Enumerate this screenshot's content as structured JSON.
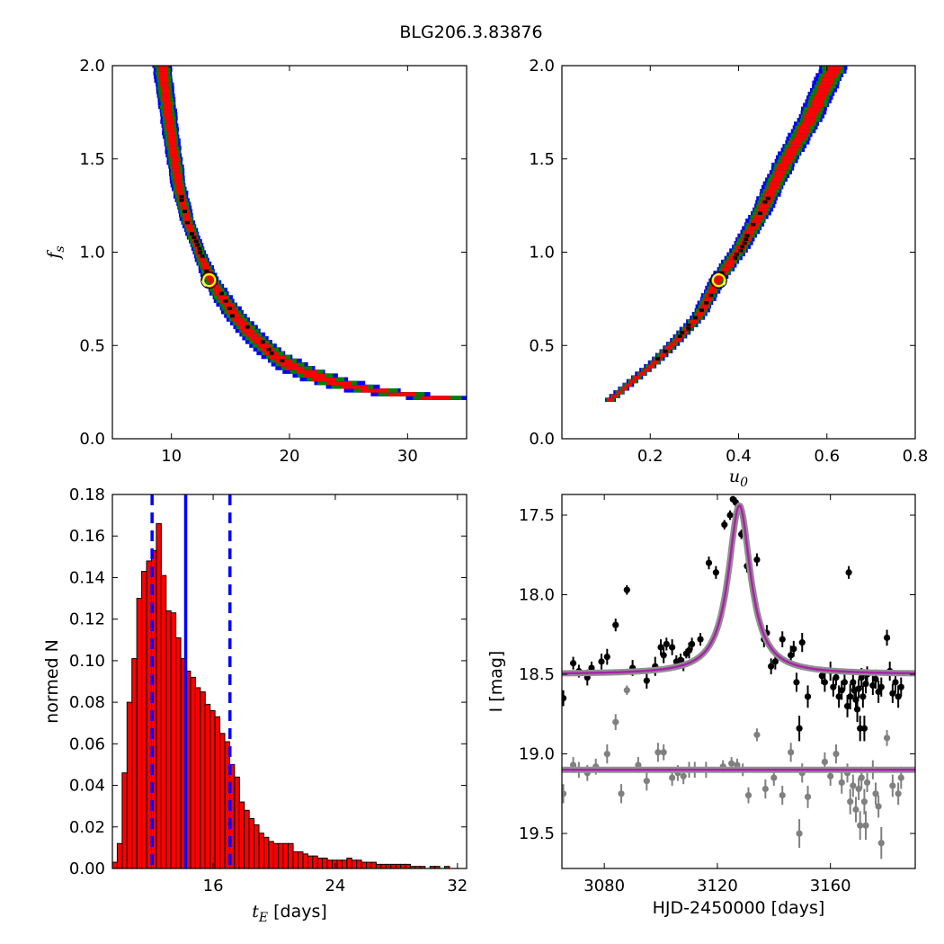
{
  "figure": {
    "title": "BLG206.3.83876"
  },
  "chart_data": [
    {
      "id": "fs_vs_tE",
      "type": "heatmap",
      "xlim": [
        5,
        35
      ],
      "ylim": [
        0,
        2.0
      ],
      "xticks": [
        "10",
        "20",
        "30"
      ],
      "yticks": [
        "0.0",
        "0.5",
        "1.0",
        "1.5",
        "2.0"
      ],
      "xlabel": "",
      "ylabel": "f_s",
      "colors": {
        "outer": "#0000ff",
        "mid": "#008000",
        "inner": "#ff0000",
        "core": "#000000",
        "best": "#ffff00"
      },
      "band": [
        [
          9.2,
          2.0
        ],
        [
          10.0,
          1.6
        ],
        [
          10.6,
          1.35
        ],
        [
          11.4,
          1.15
        ],
        [
          12.3,
          1.0
        ],
        [
          13.3,
          0.85
        ],
        [
          14.3,
          0.75
        ],
        [
          15.4,
          0.65
        ],
        [
          16.8,
          0.55
        ],
        [
          18.5,
          0.45
        ],
        [
          20.5,
          0.37
        ],
        [
          23.0,
          0.31
        ],
        [
          26.0,
          0.26
        ],
        [
          29.5,
          0.23
        ],
        [
          32.5,
          0.21
        ]
      ],
      "best_fit": {
        "x": 13.2,
        "y": 0.85
      }
    },
    {
      "id": "fs_vs_u0",
      "type": "heatmap",
      "xlim": [
        0,
        0.8
      ],
      "ylim": [
        0,
        2.0
      ],
      "xticks": [
        "0.2",
        "0.4",
        "0.6",
        "0.8"
      ],
      "yticks": [
        "0.0",
        "0.5",
        "1.0",
        "1.5",
        "2.0"
      ],
      "xlabel": "u_0",
      "ylabel": "",
      "colors": {
        "outer": "#0000ff",
        "mid": "#008000",
        "inner": "#ff0000",
        "core": "#000000",
        "best": "#ffff00"
      },
      "band": [
        [
          0.11,
          0.2
        ],
        [
          0.16,
          0.3
        ],
        [
          0.21,
          0.4
        ],
        [
          0.26,
          0.52
        ],
        [
          0.31,
          0.65
        ],
        [
          0.355,
          0.85
        ],
        [
          0.4,
          1.0
        ],
        [
          0.45,
          1.2
        ],
        [
          0.5,
          1.45
        ],
        [
          0.56,
          1.7
        ],
        [
          0.62,
          2.0
        ]
      ],
      "best_fit": {
        "x": 0.355,
        "y": 0.85
      }
    },
    {
      "id": "tE_hist",
      "type": "bar",
      "xlim": [
        9.4,
        32.6
      ],
      "ylim": [
        0,
        0.18
      ],
      "xticks": [
        "16",
        "24",
        "32"
      ],
      "yticks": [
        "0.00",
        "0.02",
        "0.04",
        "0.06",
        "0.08",
        "0.10",
        "0.12",
        "0.14",
        "0.16",
        "0.18"
      ],
      "xlabel": "t_E [days]",
      "ylabel": "normed N",
      "bin_start": 9.4,
      "bin_width": 0.32,
      "values": [
        0.003,
        0.012,
        0.046,
        0.08,
        0.101,
        0.13,
        0.143,
        0.148,
        0.153,
        0.166,
        0.141,
        0.124,
        0.123,
        0.111,
        0.101,
        0.095,
        0.092,
        0.087,
        0.085,
        0.079,
        0.076,
        0.073,
        0.065,
        0.061,
        0.05,
        0.044,
        0.032,
        0.028,
        0.024,
        0.021,
        0.017,
        0.015,
        0.013,
        0.012,
        0.012,
        0.012,
        0.012,
        0.008,
        0.008,
        0.007,
        0.006,
        0.006,
        0.005,
        0.005,
        0.004,
        0.004,
        0.004,
        0.004,
        0.005,
        0.004,
        0.004,
        0.003,
        0.003,
        0.003,
        0.002,
        0.002,
        0.002,
        0.002,
        0.002,
        0.002,
        0.002,
        0.001,
        0.001,
        0.001,
        0.0,
        0.001,
        0.001,
        0.0,
        0.001,
        0.0,
        0.0,
        0.0
      ],
      "bar_color": "#ff0000",
      "median": 14.2,
      "lower": 12.0,
      "upper": 17.1,
      "line_color": "#0000ff"
    },
    {
      "id": "lightcurve",
      "type": "scatter",
      "xlim": [
        3065,
        3190
      ],
      "ylim": [
        19.72,
        17.37
      ],
      "xticks": [
        "3080",
        "3120",
        "3160"
      ],
      "yticks": [
        "17.5",
        "18.0",
        "18.5",
        "19.0",
        "19.5"
      ],
      "xlabel": "HJD-2450000 [days]",
      "ylabel": "I [mag]",
      "model": {
        "t0": 3127.8,
        "baseline": 18.5,
        "peak": 17.44,
        "width": 4.8,
        "color": "#aa22aa"
      },
      "residual_baseline": 19.1,
      "data": [
        [
          3065.5,
          18.65,
          0.05
        ],
        [
          3069,
          18.43,
          0.04
        ],
        [
          3071,
          18.48,
          0.04
        ],
        [
          3074,
          18.52,
          0.05
        ],
        [
          3075.5,
          18.46,
          0.04
        ],
        [
          3079,
          18.42,
          0.05
        ],
        [
          3081,
          18.39,
          0.05
        ],
        [
          3084,
          18.19,
          0.04
        ],
        [
          3088,
          17.97,
          0.03
        ],
        [
          3090,
          18.46,
          0.05
        ],
        [
          3095,
          18.54,
          0.05
        ],
        [
          3098,
          18.45,
          0.06
        ],
        [
          3100,
          18.33,
          0.05
        ],
        [
          3101,
          18.38,
          0.05
        ],
        [
          3102,
          18.31,
          0.04
        ],
        [
          3104,
          18.33,
          0.05
        ],
        [
          3105.5,
          18.42,
          0.04
        ],
        [
          3107,
          18.41,
          0.04
        ],
        [
          3108,
          18.44,
          0.04
        ],
        [
          3109,
          18.37,
          0.03
        ],
        [
          3110,
          18.35,
          0.05
        ],
        [
          3111,
          18.31,
          0.04
        ],
        [
          3114,
          18.28,
          0.04
        ],
        [
          3117,
          17.8,
          0.04
        ],
        [
          3119.5,
          17.86,
          0.04
        ],
        [
          3122.5,
          17.56,
          0.03
        ],
        [
          3124.5,
          17.5,
          0.03
        ],
        [
          3125.5,
          17.4,
          0.02
        ],
        [
          3126.5,
          17.42,
          0.03
        ],
        [
          3128.5,
          17.62,
          0.03
        ],
        [
          3130.5,
          17.82,
          0.04
        ],
        [
          3134,
          17.78,
          0.04
        ],
        [
          3136.5,
          18.28,
          0.05
        ],
        [
          3137.5,
          18.24,
          0.05
        ],
        [
          3139,
          18.45,
          0.05
        ],
        [
          3140.5,
          18.42,
          0.05
        ],
        [
          3143,
          18.28,
          0.05
        ],
        [
          3146,
          18.38,
          0.06
        ],
        [
          3147,
          18.34,
          0.05
        ],
        [
          3148,
          18.55,
          0.06
        ],
        [
          3149,
          18.84,
          0.08
        ],
        [
          3150,
          18.3,
          0.06
        ],
        [
          3152,
          18.64,
          0.07
        ],
        [
          3157,
          18.51,
          0.05
        ],
        [
          3158,
          18.55,
          0.06
        ],
        [
          3160,
          18.48,
          0.06
        ],
        [
          3161,
          18.58,
          0.06
        ],
        [
          3162,
          18.52,
          0.05
        ],
        [
          3163,
          18.64,
          0.07
        ],
        [
          3164,
          18.6,
          0.06
        ],
        [
          3165,
          18.55,
          0.05
        ],
        [
          3166,
          18.7,
          0.07
        ],
        [
          3166.5,
          17.86,
          0.04
        ],
        [
          3167,
          18.64,
          0.08
        ],
        [
          3168,
          18.55,
          0.07
        ],
        [
          3168.5,
          18.6,
          0.06
        ],
        [
          3169,
          18.66,
          0.06
        ],
        [
          3169.5,
          18.72,
          0.08
        ],
        [
          3170,
          18.59,
          0.06
        ],
        [
          3170.5,
          18.84,
          0.08
        ],
        [
          3171,
          18.52,
          0.06
        ],
        [
          3171.5,
          18.64,
          0.07
        ],
        [
          3172,
          18.84,
          0.08
        ],
        [
          3172.5,
          18.56,
          0.06
        ],
        [
          3173,
          18.5,
          0.05
        ],
        [
          3175,
          18.57,
          0.06
        ],
        [
          3176,
          18.53,
          0.06
        ],
        [
          3177,
          18.61,
          0.07
        ],
        [
          3178,
          18.58,
          0.06
        ],
        [
          3180,
          18.27,
          0.05
        ],
        [
          3181,
          18.48,
          0.06
        ],
        [
          3182,
          18.62,
          0.06
        ],
        [
          3183,
          18.55,
          0.07
        ],
        [
          3184,
          18.64,
          0.07
        ],
        [
          3185,
          18.58,
          0.06
        ]
      ],
      "residuals": [
        [
          3065.5,
          19.25,
          0.06
        ],
        [
          3069,
          19.07,
          0.05
        ],
        [
          3071,
          19.1,
          0.05
        ],
        [
          3074,
          19.12,
          0.05
        ],
        [
          3077,
          19.08,
          0.05
        ],
        [
          3081,
          19.0,
          0.06
        ],
        [
          3084,
          18.8,
          0.05
        ],
        [
          3086,
          19.25,
          0.06
        ],
        [
          3088,
          18.6,
          0.03
        ],
        [
          3092,
          19.07,
          0.05
        ],
        [
          3095,
          19.17,
          0.06
        ],
        [
          3099,
          18.99,
          0.06
        ],
        [
          3101,
          18.99,
          0.05
        ],
        [
          3104,
          19.15,
          0.05
        ],
        [
          3106,
          19.12,
          0.05
        ],
        [
          3108,
          19.14,
          0.05
        ],
        [
          3110,
          19.1,
          0.05
        ],
        [
          3112,
          19.1,
          0.05
        ],
        [
          3116,
          19.1,
          0.05
        ],
        [
          3122,
          19.08,
          0.04
        ],
        [
          3125,
          19.06,
          0.04
        ],
        [
          3127,
          19.07,
          0.04
        ],
        [
          3129,
          19.1,
          0.04
        ],
        [
          3131,
          19.26,
          0.05
        ],
        [
          3134,
          18.88,
          0.04
        ],
        [
          3137,
          19.22,
          0.06
        ],
        [
          3140,
          19.15,
          0.05
        ],
        [
          3143,
          19.26,
          0.06
        ],
        [
          3146,
          18.99,
          0.06
        ],
        [
          3149,
          19.5,
          0.09
        ],
        [
          3150,
          19.12,
          0.06
        ],
        [
          3152,
          19.27,
          0.07
        ],
        [
          3158,
          19.05,
          0.06
        ],
        [
          3160,
          19.14,
          0.06
        ],
        [
          3162,
          19.0,
          0.06
        ],
        [
          3164,
          19.18,
          0.07
        ],
        [
          3166,
          19.12,
          0.06
        ],
        [
          3167,
          19.3,
          0.08
        ],
        [
          3168,
          19.2,
          0.07
        ],
        [
          3169,
          19.35,
          0.08
        ],
        [
          3170,
          19.22,
          0.07
        ],
        [
          3170.5,
          19.45,
          0.09
        ],
        [
          3171,
          19.15,
          0.07
        ],
        [
          3172,
          19.3,
          0.08
        ],
        [
          3172.5,
          19.45,
          0.09
        ],
        [
          3173,
          19.18,
          0.06
        ],
        [
          3175,
          19.1,
          0.06
        ],
        [
          3176,
          19.25,
          0.07
        ],
        [
          3177,
          19.33,
          0.07
        ],
        [
          3178,
          19.56,
          0.1
        ],
        [
          3180,
          18.9,
          0.05
        ],
        [
          3182,
          19.2,
          0.07
        ],
        [
          3184,
          19.25,
          0.07
        ],
        [
          3185,
          19.15,
          0.07
        ]
      ]
    }
  ]
}
